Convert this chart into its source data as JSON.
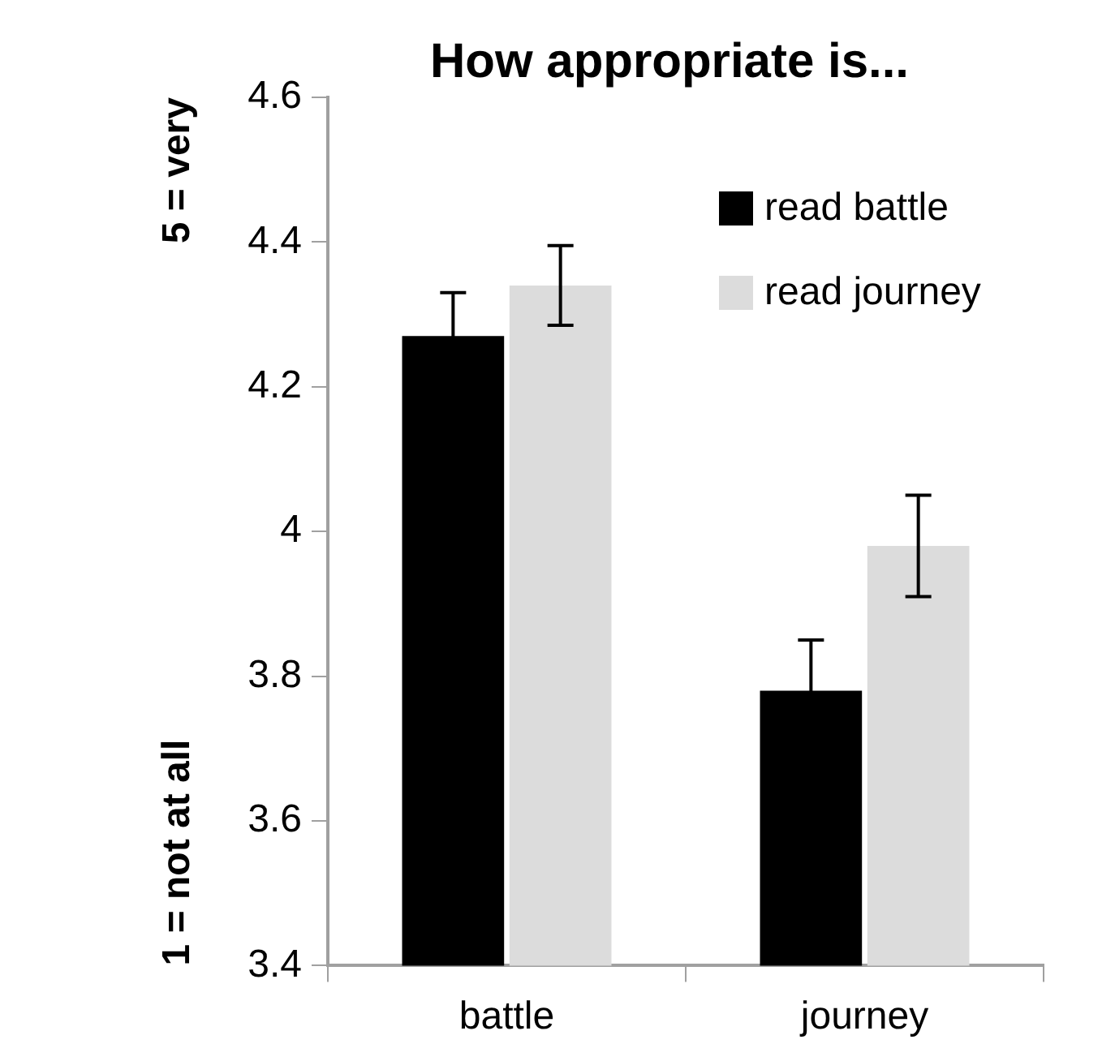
{
  "chart_data": {
    "type": "bar",
    "title": "How appropriate is...",
    "categories": [
      "battle",
      "journey"
    ],
    "series": [
      {
        "name": "read battle",
        "color": "#000000",
        "values": [
          4.27,
          3.78
        ],
        "errors": [
          0.06,
          0.07
        ]
      },
      {
        "name": "read journey",
        "color": "#dcdcdc",
        "values": [
          4.34,
          3.98
        ],
        "errors": [
          0.055,
          0.07
        ]
      }
    ],
    "ylim": [
      3.4,
      4.6
    ],
    "yticks": [
      3.4,
      3.6,
      3.8,
      {
        "value": 4,
        "label": "4"
      },
      4.2,
      4.4,
      4.6
    ],
    "grid": false,
    "legend": "top right",
    "annotations": [
      "5 = very",
      "1 = not at all"
    ]
  }
}
